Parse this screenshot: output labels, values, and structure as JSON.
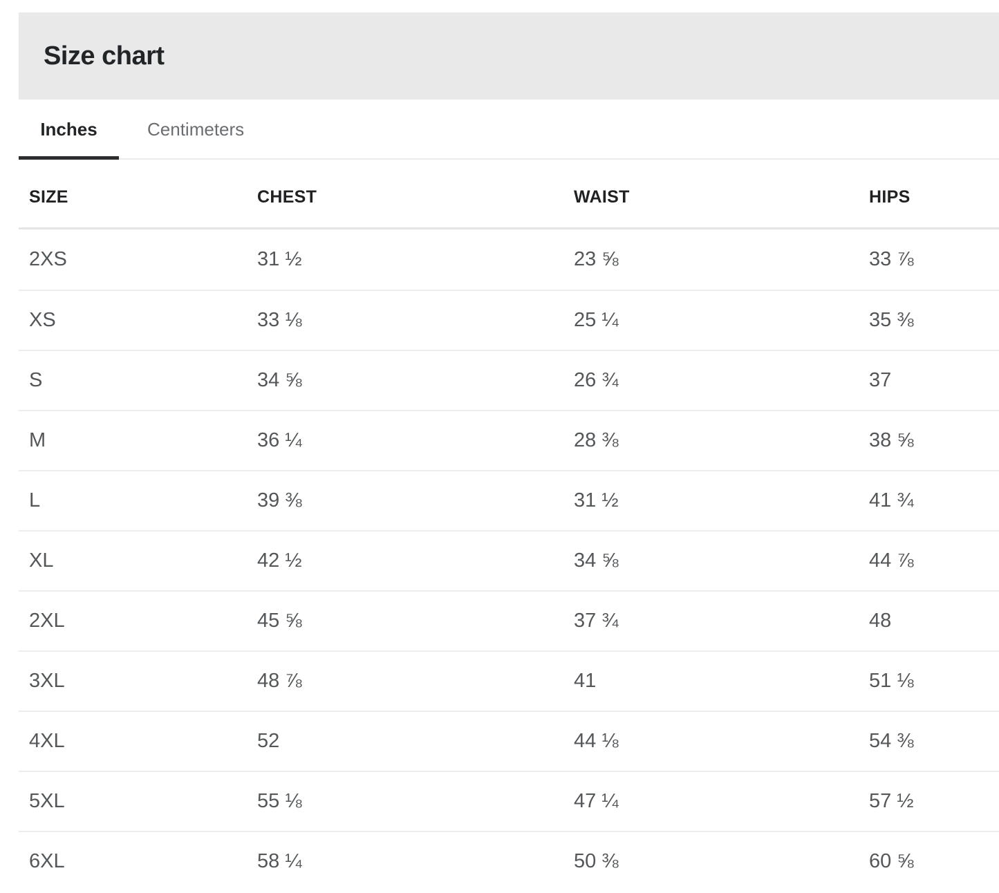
{
  "panel": {
    "title": "Size chart"
  },
  "tabs": [
    {
      "label": "Inches",
      "active": true
    },
    {
      "label": "Centimeters",
      "active": false
    }
  ],
  "active_unit": "Inches",
  "table": {
    "columns": [
      "SIZE",
      "CHEST",
      "WAIST",
      "HIPS"
    ],
    "rows": [
      {
        "size": "2XS",
        "chest": "31 ½",
        "waist": "23 ⅝",
        "hips": "33 ⅞"
      },
      {
        "size": "XS",
        "chest": "33 ⅛",
        "waist": "25 ¼",
        "hips": "35 ⅜"
      },
      {
        "size": "S",
        "chest": "34 ⅝",
        "waist": "26 ¾",
        "hips": "37"
      },
      {
        "size": "M",
        "chest": "36 ¼",
        "waist": "28 ⅜",
        "hips": "38 ⅝"
      },
      {
        "size": "L",
        "chest": "39 ⅜",
        "waist": "31 ½",
        "hips": "41 ¾"
      },
      {
        "size": "XL",
        "chest": "42 ½",
        "waist": "34 ⅝",
        "hips": "44 ⅞"
      },
      {
        "size": "2XL",
        "chest": "45 ⅝",
        "waist": "37 ¾",
        "hips": "48"
      },
      {
        "size": "3XL",
        "chest": "48 ⅞",
        "waist": "41",
        "hips": "51 ⅛"
      },
      {
        "size": "4XL",
        "chest": "52",
        "waist": "44 ⅛",
        "hips": "54 ⅜"
      },
      {
        "size": "5XL",
        "chest": "55 ⅛",
        "waist": "47 ¼",
        "hips": "57 ½"
      },
      {
        "size": "6XL",
        "chest": "58 ¼",
        "waist": "50 ⅜",
        "hips": "60 ⅝"
      }
    ]
  },
  "colors": {
    "header_bg": "#e9e9e9",
    "text_dark": "#222527",
    "text_gray": "#54575a",
    "tab_inactive": "#6a6e72",
    "active_tab_underline": "#2b2d2e",
    "header_divider": "#e5e5e5",
    "row_divider": "#ededed"
  }
}
